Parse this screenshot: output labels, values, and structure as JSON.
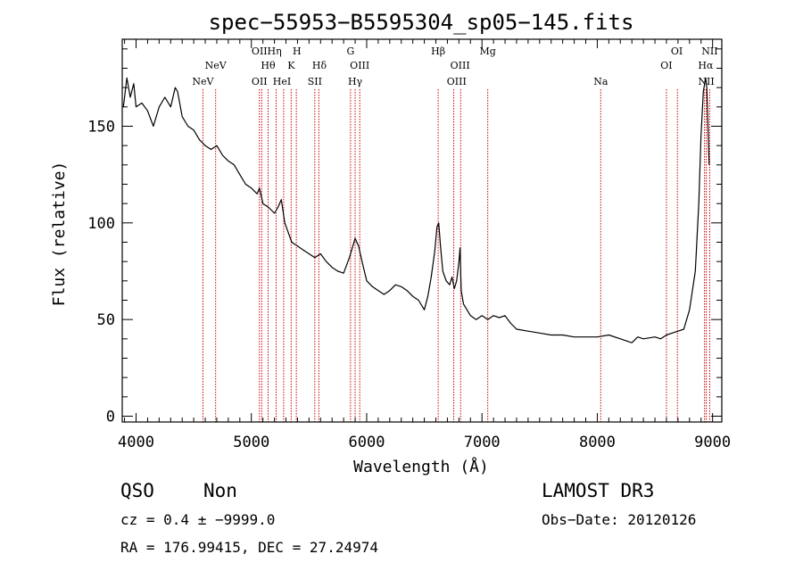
{
  "chart_data": {
    "type": "line",
    "title": "spec−55953−B5595304_sp05−145.fits",
    "xlabel": "Wavelength (Å)",
    "ylabel": "Flux (relative)",
    "xlim": [
      3880,
      9080
    ],
    "ylim": [
      -3,
      195
    ],
    "xticks": [
      4000,
      5000,
      6000,
      7000,
      8000,
      9000
    ],
    "yticks": [
      0,
      50,
      100,
      150
    ],
    "grid": false,
    "series": [
      {
        "name": "spectrum",
        "x": [
          3890,
          3920,
          3950,
          3980,
          4000,
          4050,
          4100,
          4150,
          4200,
          4250,
          4300,
          4340,
          4360,
          4400,
          4450,
          4500,
          4550,
          4600,
          4650,
          4700,
          4750,
          4800,
          4850,
          4900,
          4950,
          5000,
          5050,
          5070,
          5100,
          5150,
          5200,
          5230,
          5260,
          5290,
          5320,
          5350,
          5400,
          5450,
          5500,
          5550,
          5600,
          5650,
          5700,
          5750,
          5800,
          5850,
          5880,
          5900,
          5930,
          5960,
          6000,
          6050,
          6100,
          6150,
          6200,
          6250,
          6300,
          6350,
          6400,
          6450,
          6500,
          6530,
          6560,
          6590,
          6610,
          6625,
          6640,
          6660,
          6690,
          6720,
          6740,
          6760,
          6780,
          6800,
          6810,
          6820,
          6840,
          6870,
          6900,
          6950,
          7000,
          7050,
          7100,
          7150,
          7200,
          7250,
          7300,
          7400,
          7500,
          7600,
          7700,
          7800,
          7900,
          8000,
          8100,
          8200,
          8300,
          8350,
          8400,
          8500,
          8550,
          8600,
          8650,
          8700,
          8750,
          8800,
          8850,
          8880,
          8900,
          8920,
          8940,
          8950,
          8960,
          8970
        ],
        "y": [
          160,
          175,
          165,
          172,
          160,
          162,
          158,
          150,
          160,
          165,
          160,
          170,
          168,
          155,
          150,
          148,
          143,
          140,
          138,
          140,
          135,
          132,
          130,
          125,
          120,
          118,
          115,
          118,
          110,
          108,
          105,
          108,
          112,
          100,
          95,
          90,
          88,
          86,
          84,
          82,
          84,
          80,
          77,
          75,
          74,
          82,
          88,
          92,
          88,
          80,
          70,
          67,
          65,
          63,
          65,
          68,
          67,
          65,
          62,
          60,
          55,
          62,
          72,
          85,
          98,
          100,
          88,
          75,
          70,
          68,
          72,
          66,
          70,
          80,
          87,
          65,
          58,
          55,
          52,
          50,
          52,
          50,
          52,
          51,
          52,
          48,
          45,
          44,
          43,
          42,
          42,
          41,
          41,
          41,
          42,
          40,
          38,
          41,
          40,
          41,
          40,
          42,
          43,
          44,
          45,
          55,
          75,
          110,
          145,
          168,
          175,
          170,
          150,
          130
        ]
      }
    ],
    "lines": [
      {
        "name": "NeV",
        "x": 4580
      },
      {
        "name": "NeV",
        "x": 4690
      },
      {
        "name": "OII",
        "x": 5070
      },
      {
        "name": "OIII",
        "x": 5090
      },
      {
        "name": "Hθ",
        "x": 5145
      },
      {
        "name": "Hη",
        "x": 5215
      },
      {
        "name": "HeI",
        "x": 5280
      },
      {
        "name": "K",
        "x": 5345
      },
      {
        "name": "H",
        "x": 5390
      },
      {
        "name": "SII",
        "x": 5550
      },
      {
        "name": "Hδ",
        "x": 5585
      },
      {
        "name": "G",
        "x": 5860
      },
      {
        "name": "Hγ",
        "x": 5900
      },
      {
        "name": "OIII",
        "x": 5940
      },
      {
        "name": "Hβ",
        "x": 6620
      },
      {
        "name": "OIII",
        "x": 6755
      },
      {
        "name": "OIII",
        "x": 6815
      },
      {
        "name": "Mg",
        "x": 7050
      },
      {
        "name": "Na",
        "x": 8030
      },
      {
        "name": "OI",
        "x": 8600
      },
      {
        "name": "OI",
        "x": 8695
      },
      {
        "name": "Hα",
        "x": 8930
      },
      {
        "name": "NII",
        "x": 8945
      },
      {
        "name": "NII",
        "x": 8975
      }
    ],
    "line_labels": {
      "row1": [
        {
          "text": "OII",
          "x": 5070
        },
        {
          "text": "Hη",
          "x": 5200
        },
        {
          "text": "H",
          "x": 5395
        },
        {
          "text": "G",
          "x": 5860
        },
        {
          "text": "Hβ",
          "x": 6620
        },
        {
          "text": "Mg",
          "x": 7050
        },
        {
          "text": "OI",
          "x": 8690
        },
        {
          "text": "NII",
          "x": 8975
        }
      ],
      "row2": [
        {
          "text": "NeV",
          "x": 4690
        },
        {
          "text": "Hθ",
          "x": 5145
        },
        {
          "text": "K",
          "x": 5345
        },
        {
          "text": "Hδ",
          "x": 5590
        },
        {
          "text": "OIII",
          "x": 5940
        },
        {
          "text": "OIII",
          "x": 6810
        },
        {
          "text": "OI",
          "x": 8600
        },
        {
          "text": "Hα",
          "x": 8940
        }
      ],
      "row3": [
        {
          "text": "NeV",
          "x": 4580
        },
        {
          "text": "OII",
          "x": 5070
        },
        {
          "text": "HeI",
          "x": 5265
        },
        {
          "text": "SII",
          "x": 5550
        },
        {
          "text": "Hγ",
          "x": 5900
        },
        {
          "text": "OIII",
          "x": 6780
        },
        {
          "text": "Na",
          "x": 8030
        },
        {
          "text": "NII",
          "x": 8945
        }
      ]
    }
  },
  "info": {
    "class": "QSO",
    "subclass": "Non",
    "survey": "LAMOST DR3",
    "cz": "cz = 0.4 ± −9999.0",
    "obs_date": "Obs−Date: 20120126",
    "radec": "RA = 176.99415, DEC =  27.24974"
  }
}
